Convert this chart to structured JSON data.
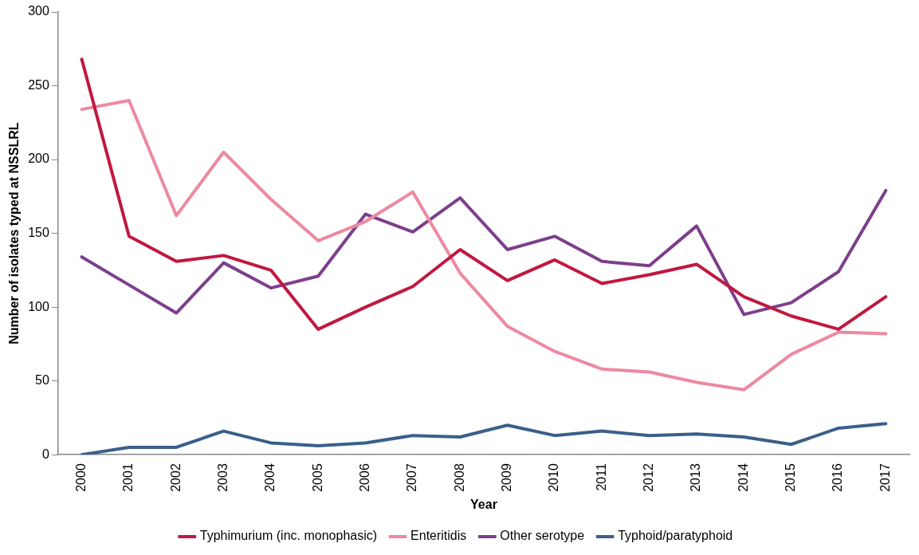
{
  "chart_data": {
    "type": "line",
    "xlabel": "Year",
    "ylabel": "Number of isolates typed at NSSLRL",
    "categories": [
      "2000",
      "2001",
      "2002",
      "2003",
      "2004",
      "2005",
      "2006",
      "2007",
      "2008",
      "2009",
      "2010",
      "2011",
      "2012",
      "2013",
      "2014",
      "2015",
      "2016",
      "2017"
    ],
    "series": [
      {
        "name": "Typhimurium (inc. monophasic)",
        "color": "#c0183f",
        "values": [
          268,
          148,
          131,
          135,
          125,
          85,
          100,
          114,
          139,
          118,
          132,
          116,
          122,
          129,
          107,
          94,
          85,
          107
        ]
      },
      {
        "name": "Enteritidis",
        "color": "#ec8aa0",
        "values": [
          234,
          240,
          162,
          205,
          173,
          145,
          158,
          178,
          123,
          87,
          70,
          58,
          56,
          49,
          44,
          68,
          83,
          82
        ]
      },
      {
        "name": "Other serotype",
        "color": "#7d3f8c",
        "values": [
          134,
          115,
          96,
          130,
          113,
          121,
          163,
          151,
          174,
          139,
          148,
          131,
          128,
          155,
          95,
          103,
          124,
          179
        ]
      },
      {
        "name": "Typhoid/paratyphoid",
        "color": "#3a5f8a",
        "values": [
          0,
          5,
          5,
          16,
          8,
          6,
          8,
          13,
          12,
          20,
          13,
          16,
          13,
          14,
          12,
          7,
          18,
          21
        ]
      }
    ],
    "ylim": [
      0,
      300
    ],
    "yticks": [
      0,
      50,
      100,
      150,
      200,
      250,
      300
    ],
    "grid": false,
    "legend": "bottom",
    "marker": "none",
    "line_style": "solid"
  }
}
